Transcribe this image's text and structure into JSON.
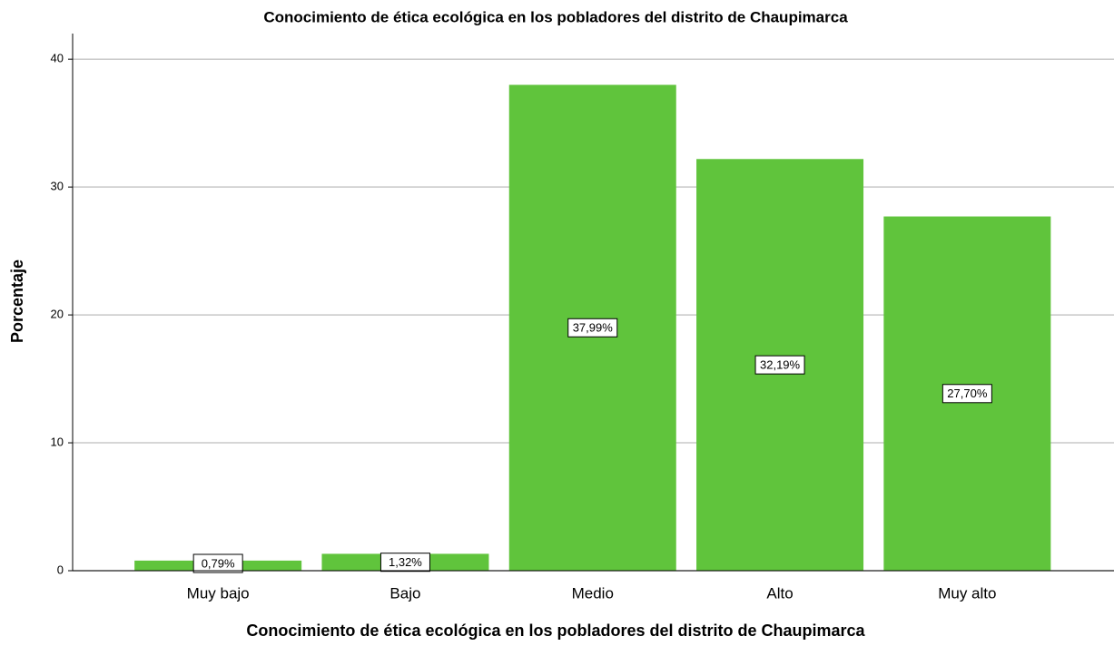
{
  "chart_data": {
    "type": "bar",
    "title": "Conocimiento de ética ecológica en los pobladores del distrito de Chaupimarca",
    "x_label": "Conocimiento de ética ecológica en los pobladores del distrito de Chaupimarca",
    "y_label": "Porcentaje",
    "categories": [
      "Muy bajo",
      "Bajo",
      "Medio",
      "Alto",
      "Muy alto"
    ],
    "values": [
      0.79,
      1.32,
      37.99,
      32.19,
      27.7
    ],
    "value_labels": [
      "0,79%",
      "1,32%",
      "37,99%",
      "32,19%",
      "27,70%"
    ],
    "color": "#60c43c",
    "ylim": [
      0,
      42
    ],
    "yticks": [
      0,
      10,
      20,
      30,
      40
    ],
    "grid": true
  }
}
